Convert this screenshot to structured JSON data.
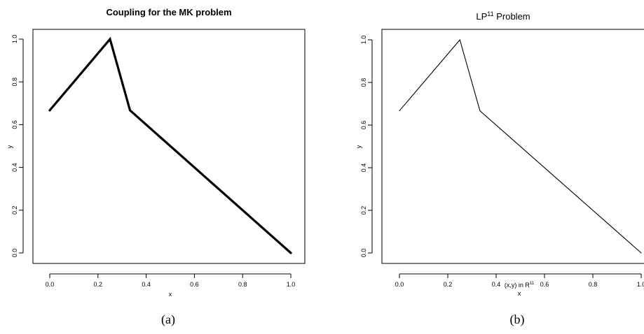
{
  "chart_data": [
    {
      "type": "line",
      "title": "Coupling for the MK problem",
      "title_bold": true,
      "xlabel": "x",
      "ylabel": "y",
      "xlim": [
        0,
        1
      ],
      "ylim": [
        0,
        1
      ],
      "xticks": [
        "0.0",
        "0.2",
        "0.4",
        "0.6",
        "0.8",
        "1.0"
      ],
      "yticks": [
        "0.0",
        "0.2",
        "0.4",
        "0.6",
        "0.8",
        "1.0"
      ],
      "series": [
        {
          "x": [
            0.0,
            0.25,
            0.333,
            1.0
          ],
          "y": [
            0.667,
            1.0,
            0.667,
            0.0
          ]
        }
      ],
      "line_style": "thick",
      "caption": "(a)"
    },
    {
      "type": "line",
      "title": "LP",
      "title_superscript": "11",
      "title_suffix": " Problem",
      "title_bold": false,
      "xlabel_note": "(x,y) in R",
      "xlabel_note_superscript": "11",
      "xlabel": "x",
      "ylabel": "y",
      "xlim": [
        0,
        1
      ],
      "ylim": [
        0,
        1
      ],
      "xticks": [
        "0.0",
        "0.2",
        "0.4",
        "0.6",
        "0.8",
        "1.0"
      ],
      "yticks": [
        "0.0",
        "0.2",
        "0.4",
        "0.6",
        "0.8",
        "1.0"
      ],
      "series": [
        {
          "x": [
            0.0,
            0.25,
            0.333,
            1.0
          ],
          "y": [
            0.667,
            1.0,
            0.667,
            0.0
          ]
        }
      ],
      "line_style": "thin",
      "caption": "(b)"
    }
  ]
}
